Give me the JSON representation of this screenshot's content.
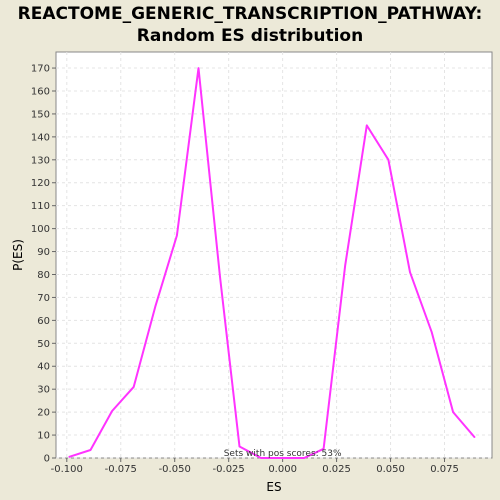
{
  "chart_data": {
    "type": "line",
    "title_lines": [
      "REACTOME_GENERIC_TRANSCRIPTION_PATHWAY:",
      "Random ES distribution"
    ],
    "xlabel": "ES",
    "ylabel": "P(ES)",
    "xlim": [
      -0.105,
      0.097
    ],
    "ylim": [
      0,
      177
    ],
    "x_ticks": [
      -0.1,
      -0.075,
      -0.05,
      -0.025,
      0.0,
      0.025,
      0.05,
      0.075
    ],
    "x_tick_labels": [
      "-0.100",
      "-0.075",
      "-0.050",
      "-0.025",
      "0.000",
      "0.025",
      "0.050",
      "0.075"
    ],
    "y_ticks": [
      0,
      10,
      20,
      30,
      40,
      50,
      60,
      70,
      80,
      90,
      100,
      110,
      120,
      130,
      140,
      150,
      160,
      170
    ],
    "y_tick_labels": [
      "0",
      "10",
      "20",
      "30",
      "40",
      "50",
      "60",
      "70",
      "80",
      "90",
      "100",
      "110",
      "120",
      "130",
      "140",
      "150",
      "160",
      "170"
    ],
    "grid": true,
    "annotation": "Sets with pos scores: 53%",
    "line_color": "#ff33ff",
    "series": [
      {
        "x": [
          -0.099,
          -0.089,
          -0.079,
          -0.069,
          -0.059,
          -0.049,
          -0.039,
          -0.029,
          -0.02,
          -0.01,
          0.0,
          0.01,
          0.019,
          0.029,
          0.039,
          0.049,
          0.059,
          0.069,
          0.079,
          0.089
        ],
        "y": [
          0.5,
          3.5,
          20.5,
          31,
          66,
          97,
          170,
          79,
          5,
          0,
          0,
          0,
          4,
          84,
          145,
          130,
          81,
          55,
          20,
          9
        ]
      }
    ]
  }
}
